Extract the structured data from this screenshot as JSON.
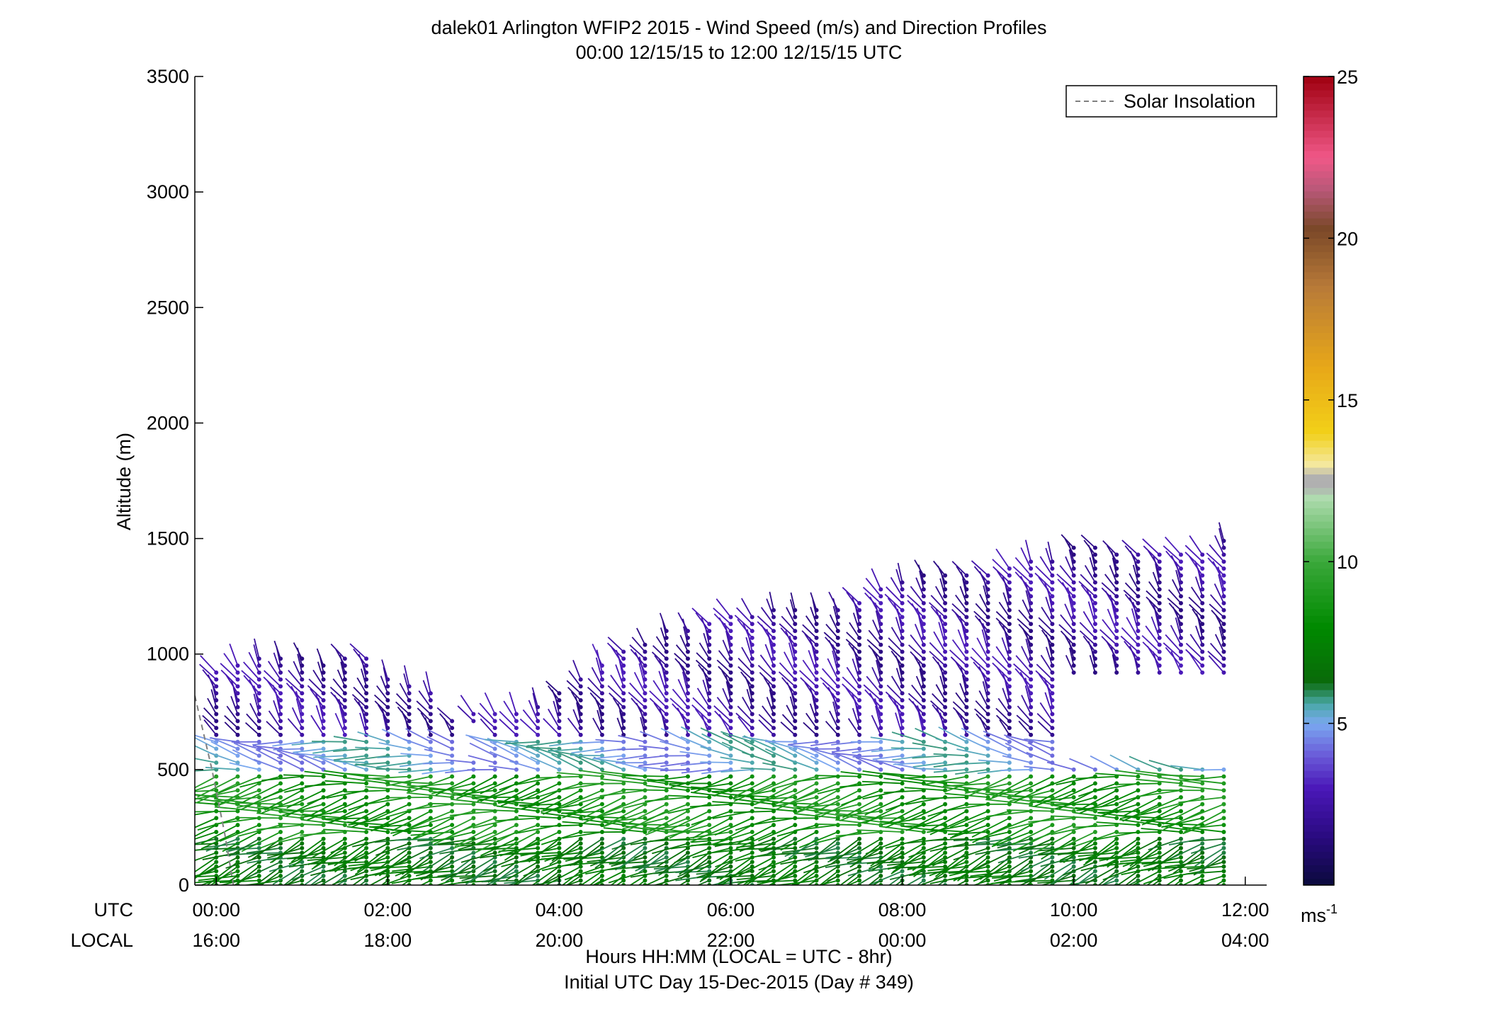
{
  "chart_data": {
    "type": "wind-barb-profile",
    "title": "dalek01 Arlington WFIP2 2015 - Wind Speed (m/s) and Direction Profiles",
    "subtitle": "00:00 12/15/15 to 12:00 12/15/15  UTC",
    "ylabel": "Altitude (m)",
    "xlabel": "Hours HH:MM  (LOCAL = UTC - 8hr)",
    "xlabel2": "Initial UTC Day 15-Dec-2015 (Day # 349)",
    "ylim": [
      0,
      3500
    ],
    "xlim_hours": [
      -0.25,
      12.25
    ],
    "yticks": [
      0,
      500,
      1000,
      1500,
      2000,
      2500,
      3000,
      3500
    ],
    "yticklabels": [
      "0",
      "500",
      "1000",
      "1500",
      "2000",
      "2500",
      "3000",
      "3500"
    ],
    "xticks_hours": [
      0,
      2,
      4,
      6,
      8,
      10,
      12
    ],
    "xrow_labels": {
      "utc": "UTC",
      "local": "LOCAL"
    },
    "xticklabels_utc": [
      "00:00",
      "02:00",
      "04:00",
      "06:00",
      "08:00",
      "10:00",
      "12:00"
    ],
    "xticklabels_local": [
      "16:00",
      "18:00",
      "20:00",
      "22:00",
      "00:00",
      "02:00",
      "04:00"
    ],
    "legend": {
      "label": "Solar Insolation",
      "placement": "top-right",
      "line_color": "#808080",
      "line_style": "dashed"
    },
    "colorbar": {
      "range": [
        0,
        25
      ],
      "ticks": [
        5,
        10,
        15,
        20,
        25
      ],
      "ticklabels": [
        "5",
        "10",
        "15",
        "20",
        "25"
      ],
      "unit_label": "ms",
      "unit_exponent": "-1",
      "stops": [
        {
          "v": 0,
          "c": "#0a0a3c"
        },
        {
          "v": 1.5,
          "c": "#2a0a80"
        },
        {
          "v": 3,
          "c": "#4a18b8"
        },
        {
          "v": 4,
          "c": "#6a5ad8"
        },
        {
          "v": 5,
          "c": "#7aa8f0"
        },
        {
          "v": 5.6,
          "c": "#4aa8a8"
        },
        {
          "v": 6.3,
          "c": "#0a6a0a"
        },
        {
          "v": 8,
          "c": "#008a00"
        },
        {
          "v": 10,
          "c": "#3aa83a"
        },
        {
          "v": 12,
          "c": "#b0dcb0"
        },
        {
          "v": 12.3,
          "c": "#b0b0b0"
        },
        {
          "v": 12.6,
          "c": "#b0b0b0"
        },
        {
          "v": 13,
          "c": "#f4e8a0"
        },
        {
          "v": 14,
          "c": "#f2d018"
        },
        {
          "v": 16,
          "c": "#e8a818"
        },
        {
          "v": 18.5,
          "c": "#b87a38"
        },
        {
          "v": 20.3,
          "c": "#7a4828"
        },
        {
          "v": 21.5,
          "c": "#b85878"
        },
        {
          "v": 22.5,
          "c": "#f05888"
        },
        {
          "v": 25,
          "c": "#a00010"
        }
      ]
    },
    "solar_insolation": {
      "x_hours": [
        -0.25,
        -0.05,
        0.1,
        0.2
      ],
      "y": [
        820,
        500,
        220,
        0
      ]
    },
    "time_hours": [
      0,
      0.25,
      0.5,
      0.75,
      1,
      1.25,
      1.5,
      1.75,
      2,
      2.25,
      2.5,
      2.75,
      3,
      3.25,
      3.5,
      3.75,
      4,
      4.25,
      4.5,
      4.75,
      5,
      5.25,
      5.5,
      5.75,
      6,
      6.25,
      6.5,
      6.75,
      7,
      7.25,
      7.5,
      7.75,
      8,
      8.25,
      8.5,
      8.75,
      9,
      9.25,
      9.5,
      9.75,
      10,
      10.25,
      10.5,
      10.75,
      11,
      11.25,
      11.5,
      11.75
    ],
    "barb_heights_m": [
      0,
      20,
      40,
      60,
      80,
      100,
      120,
      140,
      160,
      180,
      200,
      230,
      260,
      290,
      320,
      350,
      380,
      410,
      440,
      470,
      500,
      530,
      560,
      590,
      620,
      650,
      680,
      710,
      740,
      770,
      800,
      830,
      860,
      890,
      920,
      950,
      980,
      1010,
      1040,
      1070,
      1100,
      1130,
      1160,
      1190,
      1220,
      1250,
      1280,
      1310,
      1340,
      1370,
      1400,
      1430,
      1460,
      1490
    ],
    "data_top_m": [
      920,
      950,
      980,
      1000,
      980,
      960,
      980,
      990,
      890,
      860,
      830,
      720,
      760,
      760,
      760,
      790,
      850,
      900,
      970,
      1030,
      1060,
      1100,
      1120,
      1150,
      1170,
      1180,
      1190,
      1200,
      1200,
      1210,
      1240,
      1280,
      1320,
      1350,
      1350,
      1350,
      1360,
      1380,
      1400,
      1420,
      1460,
      1470,
      1440,
      1440,
      1430,
      1440,
      1450,
      1490
    ],
    "data_gap_m": [
      {
        "from_hours": 9.85,
        "to_hours": 11.8,
        "bottom_m": 510,
        "top_m": 900
      },
      {
        "from_hours": 2.85,
        "to_hours": 3.1,
        "bottom_m": 560,
        "top_m": 680
      }
    ],
    "layers": [
      {
        "height_m_below": 220,
        "speed_ms": 6.8,
        "direction_deg": 250
      },
      {
        "height_m_below": 480,
        "speed_ms": 8.5,
        "direction_deg": 260
      },
      {
        "height_m_below": 650,
        "speed_ms": 5.0,
        "direction_deg": 280
      },
      {
        "height_m_below": 3500,
        "speed_ms": 2.3,
        "direction_deg": 330
      }
    ]
  }
}
